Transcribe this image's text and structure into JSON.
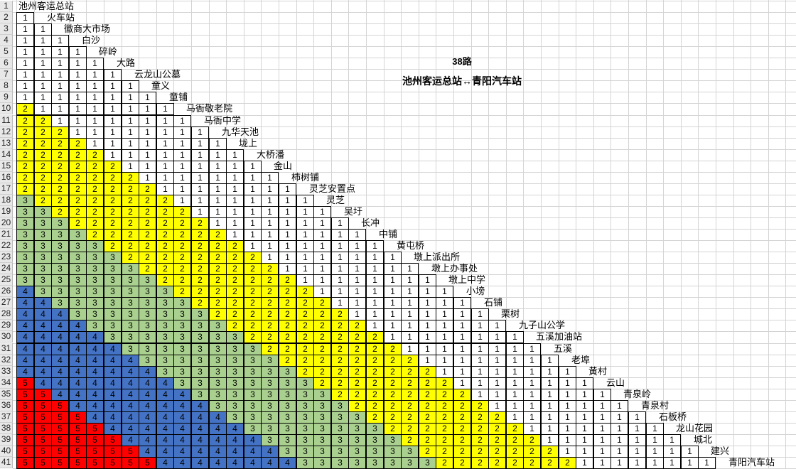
{
  "title": {
    "route_number": "38路",
    "route_name": "池州客运总站↔青阳汽车站"
  },
  "stops": [
    "池州客运总站",
    "火车站",
    "徽商大市场",
    "白沙",
    "碎岭",
    "大路",
    "云龙山公墓",
    "童义",
    "童铺",
    "马衙敬老院",
    "马衙中学",
    "九华天池",
    "垅上",
    "大桥潘",
    "金山",
    "柿树铺",
    "灵芝安置点",
    "灵芝",
    "吴圩",
    "长冲",
    "中铺",
    "黄屯桥",
    "墩上派出所",
    "墩上办事处",
    "墩上中学",
    "小塝",
    "石铺",
    "栗树",
    "九子山公学",
    "五溪加油站",
    "五溪",
    "老埠",
    "黄村",
    "云山",
    "青泉岭",
    "青泉村",
    "石板桥",
    "龙山花园",
    "城北",
    "建兴",
    "青阳汽车站"
  ],
  "fare_rows": [
    [],
    [
      1
    ],
    [
      1,
      1
    ],
    [
      1,
      1,
      1
    ],
    [
      1,
      1,
      1,
      1
    ],
    [
      1,
      1,
      1,
      1,
      1
    ],
    [
      1,
      1,
      1,
      1,
      1,
      1
    ],
    [
      1,
      1,
      1,
      1,
      1,
      1,
      1
    ],
    [
      1,
      1,
      1,
      1,
      1,
      1,
      1,
      1
    ],
    [
      2,
      1,
      1,
      1,
      1,
      1,
      1,
      1,
      1
    ],
    [
      2,
      2,
      1,
      1,
      1,
      1,
      1,
      1,
      1,
      1
    ],
    [
      2,
      2,
      2,
      1,
      1,
      1,
      1,
      1,
      1,
      1,
      1
    ],
    [
      2,
      2,
      2,
      2,
      1,
      1,
      1,
      1,
      1,
      1,
      1,
      1
    ],
    [
      2,
      2,
      2,
      2,
      2,
      1,
      1,
      1,
      1,
      1,
      1,
      1,
      1
    ],
    [
      2,
      2,
      2,
      2,
      2,
      2,
      1,
      1,
      1,
      1,
      1,
      1,
      1,
      1
    ],
    [
      2,
      2,
      2,
      2,
      2,
      2,
      2,
      1,
      1,
      1,
      1,
      1,
      1,
      1,
      1
    ],
    [
      2,
      2,
      2,
      2,
      2,
      2,
      2,
      2,
      1,
      1,
      1,
      1,
      1,
      1,
      1,
      1
    ],
    [
      3,
      2,
      2,
      2,
      2,
      2,
      2,
      2,
      2,
      1,
      1,
      1,
      1,
      1,
      1,
      1,
      1
    ],
    [
      3,
      3,
      2,
      2,
      2,
      2,
      2,
      2,
      2,
      2,
      1,
      1,
      1,
      1,
      1,
      1,
      1,
      1
    ],
    [
      3,
      3,
      3,
      2,
      2,
      2,
      2,
      2,
      2,
      2,
      2,
      1,
      1,
      1,
      1,
      1,
      1,
      1,
      1
    ],
    [
      3,
      3,
      3,
      3,
      2,
      2,
      2,
      2,
      2,
      2,
      2,
      2,
      1,
      1,
      1,
      1,
      1,
      1,
      1,
      1
    ],
    [
      3,
      3,
      3,
      3,
      3,
      2,
      2,
      2,
      2,
      2,
      2,
      2,
      2,
      1,
      1,
      1,
      1,
      1,
      1,
      1,
      1
    ],
    [
      3,
      3,
      3,
      3,
      3,
      3,
      2,
      2,
      2,
      2,
      2,
      2,
      2,
      2,
      1,
      1,
      1,
      1,
      1,
      1,
      1,
      1
    ],
    [
      3,
      3,
      3,
      3,
      3,
      3,
      3,
      2,
      2,
      2,
      2,
      2,
      2,
      2,
      2,
      1,
      1,
      1,
      1,
      1,
      1,
      1,
      1
    ],
    [
      3,
      3,
      3,
      3,
      3,
      3,
      3,
      3,
      2,
      2,
      2,
      2,
      2,
      2,
      2,
      2,
      1,
      1,
      1,
      1,
      1,
      1,
      1,
      1
    ],
    [
      4,
      3,
      3,
      3,
      3,
      3,
      3,
      3,
      3,
      2,
      2,
      2,
      2,
      2,
      2,
      2,
      2,
      1,
      1,
      1,
      1,
      1,
      1,
      1,
      1
    ],
    [
      4,
      4,
      3,
      3,
      3,
      3,
      3,
      3,
      3,
      3,
      2,
      2,
      2,
      2,
      2,
      2,
      2,
      2,
      1,
      1,
      1,
      1,
      1,
      1,
      1,
      1
    ],
    [
      4,
      4,
      4,
      3,
      3,
      3,
      3,
      3,
      3,
      3,
      3,
      2,
      2,
      2,
      2,
      2,
      2,
      2,
      2,
      1,
      1,
      1,
      1,
      1,
      1,
      1,
      1
    ],
    [
      4,
      4,
      4,
      4,
      3,
      3,
      3,
      3,
      3,
      3,
      3,
      3,
      2,
      2,
      2,
      2,
      2,
      2,
      2,
      2,
      1,
      1,
      1,
      1,
      1,
      1,
      1,
      1
    ],
    [
      4,
      4,
      4,
      4,
      4,
      3,
      3,
      3,
      3,
      3,
      3,
      3,
      3,
      2,
      2,
      2,
      2,
      2,
      2,
      2,
      2,
      1,
      1,
      1,
      1,
      1,
      1,
      1,
      1
    ],
    [
      4,
      4,
      4,
      4,
      4,
      4,
      3,
      3,
      3,
      3,
      3,
      3,
      3,
      3,
      2,
      2,
      2,
      2,
      2,
      2,
      2,
      2,
      1,
      1,
      1,
      1,
      1,
      1,
      1,
      1
    ],
    [
      4,
      4,
      4,
      4,
      4,
      4,
      4,
      3,
      3,
      3,
      3,
      3,
      3,
      3,
      3,
      2,
      2,
      2,
      2,
      2,
      2,
      2,
      2,
      1,
      1,
      1,
      1,
      1,
      1,
      1,
      1
    ],
    [
      4,
      4,
      4,
      4,
      4,
      4,
      4,
      4,
      3,
      3,
      3,
      3,
      3,
      3,
      3,
      3,
      2,
      2,
      2,
      2,
      2,
      2,
      2,
      2,
      1,
      1,
      1,
      1,
      1,
      1,
      1,
      1
    ],
    [
      5,
      4,
      4,
      4,
      4,
      4,
      4,
      4,
      4,
      3,
      3,
      3,
      3,
      3,
      3,
      3,
      3,
      2,
      2,
      2,
      2,
      2,
      2,
      2,
      2,
      1,
      1,
      1,
      1,
      1,
      1,
      1,
      1
    ],
    [
      5,
      5,
      4,
      4,
      4,
      4,
      4,
      4,
      4,
      4,
      3,
      3,
      3,
      3,
      3,
      3,
      3,
      3,
      2,
      2,
      2,
      2,
      2,
      2,
      2,
      2,
      1,
      1,
      1,
      1,
      1,
      1,
      1,
      1
    ],
    [
      5,
      5,
      5,
      4,
      4,
      4,
      4,
      4,
      4,
      4,
      4,
      3,
      3,
      3,
      3,
      3,
      3,
      3,
      3,
      2,
      2,
      2,
      2,
      2,
      2,
      2,
      2,
      1,
      1,
      1,
      1,
      1,
      1,
      1,
      1
    ],
    [
      5,
      5,
      5,
      5,
      4,
      4,
      4,
      4,
      4,
      4,
      4,
      4,
      3,
      3,
      3,
      3,
      3,
      3,
      3,
      3,
      2,
      2,
      2,
      2,
      2,
      2,
      2,
      2,
      1,
      1,
      1,
      1,
      1,
      1,
      1,
      1
    ],
    [
      5,
      5,
      5,
      5,
      5,
      4,
      4,
      4,
      4,
      4,
      4,
      4,
      4,
      3,
      3,
      3,
      3,
      3,
      3,
      3,
      3,
      2,
      2,
      2,
      2,
      2,
      2,
      2,
      2,
      1,
      1,
      1,
      1,
      1,
      1,
      1,
      1
    ],
    [
      5,
      5,
      5,
      5,
      5,
      5,
      4,
      4,
      4,
      4,
      4,
      4,
      4,
      4,
      3,
      3,
      3,
      3,
      3,
      3,
      3,
      3,
      2,
      2,
      2,
      2,
      2,
      2,
      2,
      2,
      1,
      1,
      1,
      1,
      1,
      1,
      1,
      1
    ],
    [
      5,
      5,
      5,
      5,
      5,
      5,
      5,
      4,
      4,
      4,
      4,
      4,
      4,
      4,
      4,
      3,
      3,
      3,
      3,
      3,
      3,
      3,
      3,
      2,
      2,
      2,
      2,
      2,
      2,
      2,
      2,
      1,
      1,
      1,
      1,
      1,
      1,
      1,
      1
    ],
    [
      5,
      5,
      5,
      5,
      5,
      5,
      5,
      5,
      4,
      4,
      4,
      4,
      4,
      4,
      4,
      4,
      3,
      3,
      3,
      3,
      3,
      3,
      3,
      3,
      2,
      2,
      2,
      2,
      2,
      2,
      2,
      2,
      1,
      1,
      1,
      1,
      1,
      1,
      1,
      1
    ]
  ],
  "fare_colors": {
    "1": "#ffffff",
    "2": "#ffff00",
    "3": "#a9d08e",
    "4": "#4472c4",
    "5": "#ff0000"
  }
}
